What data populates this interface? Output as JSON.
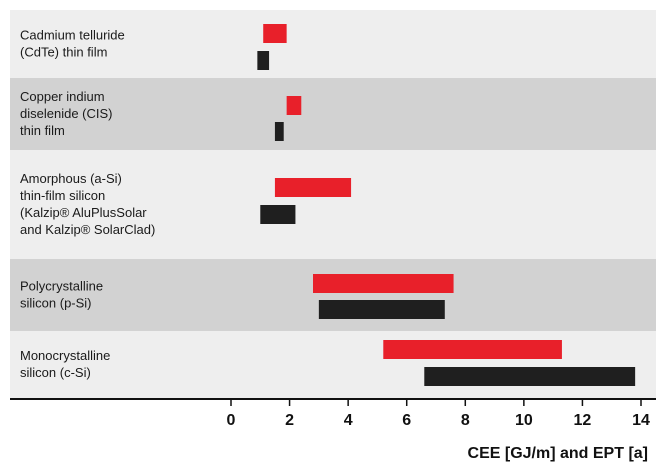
{
  "chart_data": {
    "type": "bar",
    "orientation": "horizontal-range",
    "xlabel": "CEE [GJ/m] and EPT [a]",
    "xlim": [
      0,
      14
    ],
    "xticks": [
      "0",
      "2",
      "4",
      "6",
      "8",
      "10",
      "12",
      "14"
    ],
    "categories": [
      {
        "label_lines": [
          "Cadmium telluride",
          "(CdTe) thin film"
        ]
      },
      {
        "label_lines": [
          "Copper indium",
          "diselenide (CIS)",
          "thin film"
        ]
      },
      {
        "label_lines": [
          "Amorphous (a-Si)",
          "thin-film silicon",
          "(Kalzip® AluPlusSolar",
          "and Kalzip® SolarClad)"
        ]
      },
      {
        "label_lines": [
          "Polycrystalline",
          "silicon (p-Si)"
        ]
      },
      {
        "label_lines": [
          "Monocrystalline",
          "silicon (c-Si)"
        ]
      }
    ],
    "series": [
      {
        "color": "#e8202a",
        "ranges": [
          [
            1.1,
            1.9
          ],
          [
            1.9,
            2.4
          ],
          [
            1.5,
            4.1
          ],
          [
            2.8,
            7.6
          ],
          [
            5.2,
            11.3
          ]
        ]
      },
      {
        "color": "#1f1f1f",
        "ranges": [
          [
            0.9,
            1.3
          ],
          [
            1.5,
            1.8
          ],
          [
            1.0,
            2.2
          ],
          [
            3.0,
            7.3
          ],
          [
            6.6,
            13.8
          ]
        ]
      }
    ],
    "grid": false
  }
}
